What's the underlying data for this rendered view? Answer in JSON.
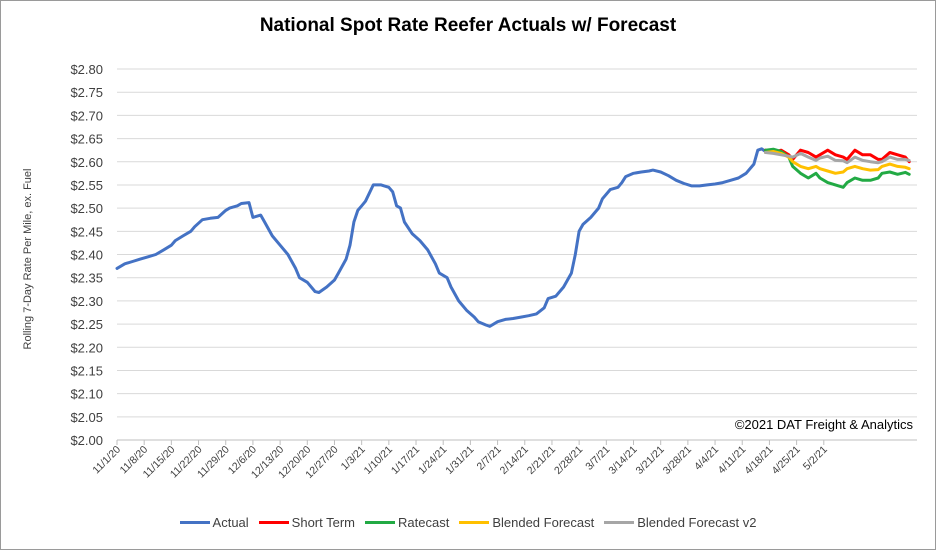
{
  "chart_data": {
    "type": "line",
    "title": "National Spot Rate Reefer Actuals w/ Forecast",
    "ylabel": "Rolling 7-Day Rate Per Mile, ex. Fuel",
    "xlabel": "",
    "annotation": "©2021 DAT Freight & Analytics",
    "ylim": [
      2.0,
      2.8
    ],
    "y_ticks": [
      "$2.00",
      "$2.05",
      "$2.10",
      "$2.15",
      "$2.20",
      "$2.25",
      "$2.30",
      "$2.35",
      "$2.40",
      "$2.45",
      "$2.50",
      "$2.55",
      "$2.60",
      "$2.65",
      "$2.70",
      "$2.75",
      "$2.80"
    ],
    "x_ticks": [
      "11/1/20",
      "11/8/20",
      "11/15/20",
      "11/22/20",
      "11/29/20",
      "12/6/20",
      "12/13/20",
      "12/20/20",
      "12/27/20",
      "1/3/21",
      "1/10/21",
      "1/17/21",
      "1/24/21",
      "1/31/21",
      "2/7/21",
      "2/14/21",
      "2/21/21",
      "2/28/21",
      "3/7/21",
      "3/14/21",
      "3/21/21",
      "3/28/21",
      "4/4/21",
      "4/11/21",
      "4/18/21",
      "4/25/21",
      "5/2/21"
    ],
    "grid": "horizontal",
    "legend_position": "bottom",
    "series": [
      {
        "name": "Actual",
        "color": "#4472C4",
        "points": [
          [
            0,
            2.37
          ],
          [
            2,
            2.38
          ],
          [
            4,
            2.385
          ],
          [
            6,
            2.39
          ],
          [
            8,
            2.395
          ],
          [
            10,
            2.4
          ],
          [
            12,
            2.41
          ],
          [
            14,
            2.42
          ],
          [
            15,
            2.43
          ],
          [
            17,
            2.44
          ],
          [
            19,
            2.45
          ],
          [
            20,
            2.46
          ],
          [
            22,
            2.475
          ],
          [
            24,
            2.478
          ],
          [
            26,
            2.48
          ],
          [
            28,
            2.495
          ],
          [
            29,
            2.5
          ],
          [
            31,
            2.505
          ],
          [
            32,
            2.51
          ],
          [
            34,
            2.512
          ],
          [
            35,
            2.48
          ],
          [
            37,
            2.485
          ],
          [
            38,
            2.47
          ],
          [
            40,
            2.44
          ],
          [
            42,
            2.42
          ],
          [
            44,
            2.4
          ],
          [
            46,
            2.37
          ],
          [
            47,
            2.35
          ],
          [
            49,
            2.34
          ],
          [
            51,
            2.32
          ],
          [
            52,
            2.318
          ],
          [
            54,
            2.33
          ],
          [
            56,
            2.345
          ],
          [
            57,
            2.36
          ],
          [
            59,
            2.39
          ],
          [
            60,
            2.42
          ],
          [
            61,
            2.47
          ],
          [
            62,
            2.495
          ],
          [
            63,
            2.505
          ],
          [
            64,
            2.515
          ],
          [
            66,
            2.55
          ],
          [
            68,
            2.55
          ],
          [
            70,
            2.545
          ],
          [
            71,
            2.535
          ],
          [
            72,
            2.505
          ],
          [
            73,
            2.5
          ],
          [
            74,
            2.47
          ],
          [
            76,
            2.445
          ],
          [
            78,
            2.43
          ],
          [
            80,
            2.41
          ],
          [
            82,
            2.38
          ],
          [
            83,
            2.36
          ],
          [
            85,
            2.35
          ],
          [
            86,
            2.33
          ],
          [
            88,
            2.3
          ],
          [
            90,
            2.28
          ],
          [
            92,
            2.265
          ],
          [
            93,
            2.255
          ],
          [
            95,
            2.248
          ],
          [
            96,
            2.245
          ],
          [
            98,
            2.255
          ],
          [
            100,
            2.26
          ],
          [
            102,
            2.262
          ],
          [
            104,
            2.265
          ],
          [
            106,
            2.268
          ],
          [
            108,
            2.272
          ],
          [
            110,
            2.285
          ],
          [
            111,
            2.305
          ],
          [
            113,
            2.31
          ],
          [
            115,
            2.33
          ],
          [
            117,
            2.36
          ],
          [
            118,
            2.4
          ],
          [
            119,
            2.45
          ],
          [
            120,
            2.465
          ],
          [
            122,
            2.48
          ],
          [
            124,
            2.5
          ],
          [
            125,
            2.52
          ],
          [
            127,
            2.54
          ],
          [
            129,
            2.545
          ],
          [
            130,
            2.555
          ],
          [
            131,
            2.568
          ],
          [
            133,
            2.575
          ],
          [
            135,
            2.578
          ],
          [
            137,
            2.58
          ],
          [
            138,
            2.582
          ],
          [
            140,
            2.578
          ],
          [
            142,
            2.57
          ],
          [
            144,
            2.56
          ],
          [
            146,
            2.553
          ],
          [
            148,
            2.548
          ],
          [
            150,
            2.548
          ],
          [
            152,
            2.55
          ],
          [
            154,
            2.552
          ],
          [
            156,
            2.555
          ],
          [
            158,
            2.56
          ],
          [
            160,
            2.565
          ],
          [
            162,
            2.575
          ],
          [
            164,
            2.595
          ],
          [
            165,
            2.625
          ],
          [
            166,
            2.628
          ],
          [
            167,
            2.622
          ]
        ],
        "values_note": ""
      },
      {
        "name": "Short Term",
        "color": "#FF0000",
        "points": [
          [
            167,
            2.625
          ],
          [
            169,
            2.62
          ],
          [
            171,
            2.625
          ],
          [
            173,
            2.615
          ],
          [
            174,
            2.605
          ],
          [
            176,
            2.625
          ],
          [
            178,
            2.62
          ],
          [
            180,
            2.61
          ],
          [
            181,
            2.615
          ],
          [
            183,
            2.625
          ],
          [
            185,
            2.615
          ],
          [
            187,
            2.61
          ],
          [
            188,
            2.605
          ],
          [
            190,
            2.625
          ],
          [
            192,
            2.615
          ],
          [
            194,
            2.615
          ],
          [
            196,
            2.605
          ],
          [
            197,
            2.605
          ],
          [
            199,
            2.62
          ],
          [
            201,
            2.615
          ],
          [
            203,
            2.61
          ],
          [
            204,
            2.6
          ]
        ]
      },
      {
        "name": "Ratecast",
        "color": "#22AA44",
        "points": [
          [
            167,
            2.625
          ],
          [
            169,
            2.627
          ],
          [
            171,
            2.622
          ],
          [
            173,
            2.61
          ],
          [
            174,
            2.59
          ],
          [
            176,
            2.575
          ],
          [
            178,
            2.565
          ],
          [
            180,
            2.575
          ],
          [
            181,
            2.565
          ],
          [
            183,
            2.555
          ],
          [
            185,
            2.55
          ],
          [
            187,
            2.545
          ],
          [
            188,
            2.555
          ],
          [
            190,
            2.565
          ],
          [
            192,
            2.56
          ],
          [
            194,
            2.56
          ],
          [
            196,
            2.565
          ],
          [
            197,
            2.575
          ],
          [
            199,
            2.578
          ],
          [
            201,
            2.573
          ],
          [
            203,
            2.577
          ],
          [
            204,
            2.573
          ]
        ]
      },
      {
        "name": "Blended Forecast",
        "color": "#FFC000",
        "points": [
          [
            167,
            2.62
          ],
          [
            169,
            2.622
          ],
          [
            171,
            2.618
          ],
          [
            173,
            2.61
          ],
          [
            174,
            2.6
          ],
          [
            176,
            2.59
          ],
          [
            178,
            2.585
          ],
          [
            180,
            2.59
          ],
          [
            181,
            2.585
          ],
          [
            183,
            2.58
          ],
          [
            185,
            2.575
          ],
          [
            187,
            2.578
          ],
          [
            188,
            2.585
          ],
          [
            190,
            2.59
          ],
          [
            192,
            2.585
          ],
          [
            194,
            2.582
          ],
          [
            196,
            2.583
          ],
          [
            197,
            2.59
          ],
          [
            199,
            2.595
          ],
          [
            201,
            2.59
          ],
          [
            203,
            2.588
          ],
          [
            204,
            2.585
          ]
        ]
      },
      {
        "name": "Blended Forecast v2",
        "color": "#A6A6A6",
        "points": [
          [
            167,
            2.62
          ],
          [
            169,
            2.618
          ],
          [
            171,
            2.615
          ],
          [
            173,
            2.612
          ],
          [
            174,
            2.61
          ],
          [
            176,
            2.618
          ],
          [
            178,
            2.61
          ],
          [
            180,
            2.603
          ],
          [
            181,
            2.608
          ],
          [
            183,
            2.612
          ],
          [
            185,
            2.603
          ],
          [
            187,
            2.602
          ],
          [
            188,
            2.598
          ],
          [
            190,
            2.61
          ],
          [
            192,
            2.603
          ],
          [
            194,
            2.6
          ],
          [
            196,
            2.598
          ],
          [
            197,
            2.6
          ],
          [
            199,
            2.61
          ],
          [
            201,
            2.605
          ],
          [
            203,
            2.605
          ],
          [
            204,
            2.603
          ]
        ]
      }
    ]
  }
}
